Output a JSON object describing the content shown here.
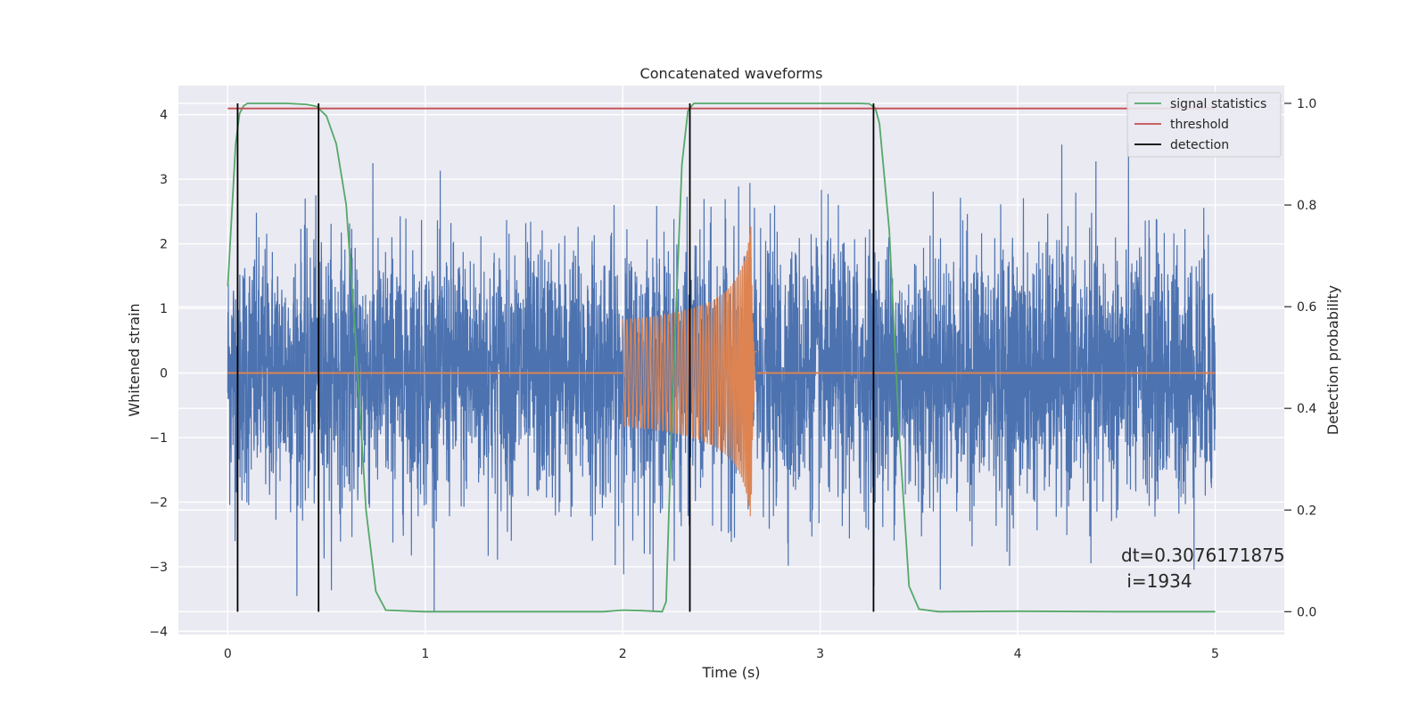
{
  "chart_data": {
    "type": "line",
    "title": "Concatenated waveforms",
    "xlabel": "Time (s)",
    "ylabel": "Whitened strain",
    "y2label": "Detection probability",
    "xlim": [
      -0.25,
      5.35
    ],
    "ylim": [
      -4.05,
      4.45
    ],
    "y2lim": [
      -0.045,
      1.035
    ],
    "xticks": [
      0,
      1,
      2,
      3,
      4,
      5
    ],
    "yticks": [
      -4,
      -3,
      -2,
      -1,
      0,
      1,
      2,
      3,
      4
    ],
    "y2ticks": [
      0.0,
      0.2,
      0.4,
      0.6,
      0.8,
      1.0
    ],
    "ytick_labels": [
      "−4",
      "−3",
      "−2",
      "−1",
      "0",
      "1",
      "2",
      "3",
      "4"
    ],
    "y2tick_labels": [
      "0.0",
      "0.2",
      "0.4",
      "0.6",
      "0.8",
      "1.0"
    ],
    "grid": true,
    "legend_position": "top-right",
    "legend": [
      "signal statistics",
      "threshold",
      "detection"
    ],
    "colors": {
      "noise": "#4c72b0",
      "injection": "#dd8452",
      "signal_statistics": "#55a868",
      "threshold": "#c44e52",
      "detection": "#000000",
      "background": "#eaeaf2"
    },
    "series": [
      {
        "name": "signal statistics",
        "axis": "right",
        "x": [
          0.0,
          0.02,
          0.04,
          0.06,
          0.08,
          0.1,
          0.15,
          0.2,
          0.3,
          0.4,
          0.45,
          0.5,
          0.55,
          0.6,
          0.65,
          0.7,
          0.75,
          0.8,
          1.0,
          1.5,
          1.9,
          2.0,
          2.1,
          2.2,
          2.22,
          2.25,
          2.3,
          2.33,
          2.36,
          2.4,
          2.5,
          2.8,
          3.0,
          3.2,
          3.25,
          3.28,
          3.3,
          3.35,
          3.4,
          3.45,
          3.5,
          3.6,
          4.0,
          4.5,
          5.0
        ],
        "y": [
          0.64,
          0.78,
          0.92,
          0.98,
          0.995,
          1.0,
          1.0,
          1.0,
          1.0,
          0.998,
          0.994,
          0.975,
          0.92,
          0.8,
          0.52,
          0.2,
          0.04,
          0.003,
          0.0,
          0.0,
          0.0,
          0.003,
          0.002,
          0.0,
          0.02,
          0.4,
          0.88,
          0.985,
          1.0,
          1.0,
          1.0,
          1.0,
          1.0,
          1.0,
          0.999,
          0.99,
          0.96,
          0.75,
          0.35,
          0.05,
          0.005,
          0.0,
          0.001,
          0.0,
          0.0
        ]
      },
      {
        "name": "threshold",
        "axis": "right",
        "x": [
          0,
          5
        ],
        "y": [
          0.99,
          0.99
        ]
      }
    ],
    "detections_x": [
      0.05,
      0.46,
      2.34,
      3.27
    ],
    "detections_y2": [
      0.0,
      1.0
    ],
    "noise": {
      "x_range": [
        0,
        5
      ],
      "typical_amplitude": 1.6,
      "peak_max": 4.1,
      "peak_min": -3.7
    },
    "injection": {
      "x_start": 2.0,
      "x_peak": 2.65,
      "x_end": 2.68,
      "amp_start": 0.45,
      "amp_peak": 2.3
    },
    "annotation": {
      "line1": "dt=0.3076171875",
      "line2": " i=1934"
    }
  }
}
